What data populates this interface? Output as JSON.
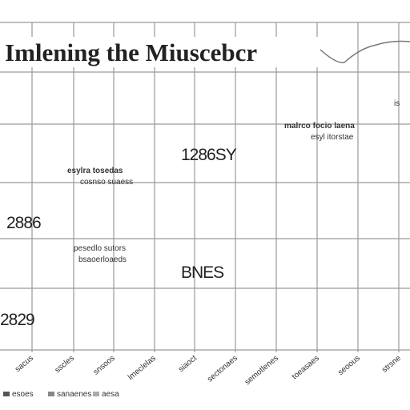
{
  "header": {
    "title": "Imlening the Miuscebcr"
  },
  "labels": [
    "1286SY",
    "2886",
    "BNES",
    "2829",
    "is"
  ],
  "notes": [
    "esylra tosedas",
    "cosnso suaess",
    "malrco focio laena",
    "esyl itorstae",
    "pesedlo sutors",
    "bsaoerloaeds"
  ],
  "x_labels": [
    "sacus",
    "sscles",
    "snsoos",
    "lmeclelas",
    "siaoct",
    "sectonaes",
    "semotlenes",
    "toeasaes",
    "seoous",
    "strsne"
  ],
  "legend": [
    "esoes",
    "sanaenes",
    "aesa"
  ]
}
